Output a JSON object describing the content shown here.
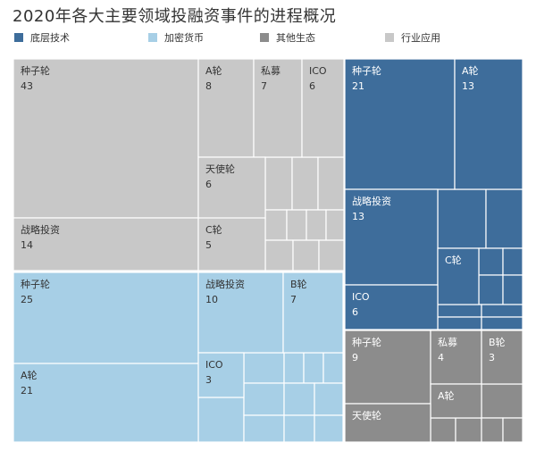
{
  "header": {
    "title": "2020年各大主要领域投融资事件的进程概况"
  },
  "chart_data": {
    "type": "treemap",
    "title": "2020年各大主要领域投融资事件的进程概况",
    "legend": [
      {
        "name": "底层技术",
        "color": "#3e6d9b"
      },
      {
        "name": "加密货币",
        "color": "#a7cfe6"
      },
      {
        "name": "其他生态",
        "color": "#8c8c8c"
      },
      {
        "name": "行业应用",
        "color": "#c8c8c8"
      }
    ],
    "groups": [
      {
        "category": "行业应用",
        "cells": [
          {
            "label": "种子轮",
            "value": 43
          },
          {
            "label": "A轮",
            "value": 8
          },
          {
            "label": "私募",
            "value": 7
          },
          {
            "label": "ICO",
            "value": 6
          },
          {
            "label": "天使轮",
            "value": 6
          },
          {
            "label": "战略投资",
            "value": 14
          },
          {
            "label": "C轮",
            "value": 5
          }
        ]
      },
      {
        "category": "底层技术",
        "cells": [
          {
            "label": "种子轮",
            "value": 21
          },
          {
            "label": "A轮",
            "value": 13
          },
          {
            "label": "战略投资",
            "value": 13
          },
          {
            "label": "C轮",
            "value": null
          },
          {
            "label": "ICO",
            "value": 6
          }
        ]
      },
      {
        "category": "加密货币",
        "cells": [
          {
            "label": "种子轮",
            "value": 25
          },
          {
            "label": "战略投资",
            "value": 10
          },
          {
            "label": "B轮",
            "value": 7
          },
          {
            "label": "A轮",
            "value": 21
          },
          {
            "label": "ICO",
            "value": 3
          }
        ]
      },
      {
        "category": "其他生态",
        "cells": [
          {
            "label": "种子轮",
            "value": 9
          },
          {
            "label": "私募",
            "value": 4
          },
          {
            "label": "B轮",
            "value": 3
          },
          {
            "label": "A轮",
            "value": null
          },
          {
            "label": "天使轮",
            "value": null
          }
        ]
      }
    ]
  }
}
